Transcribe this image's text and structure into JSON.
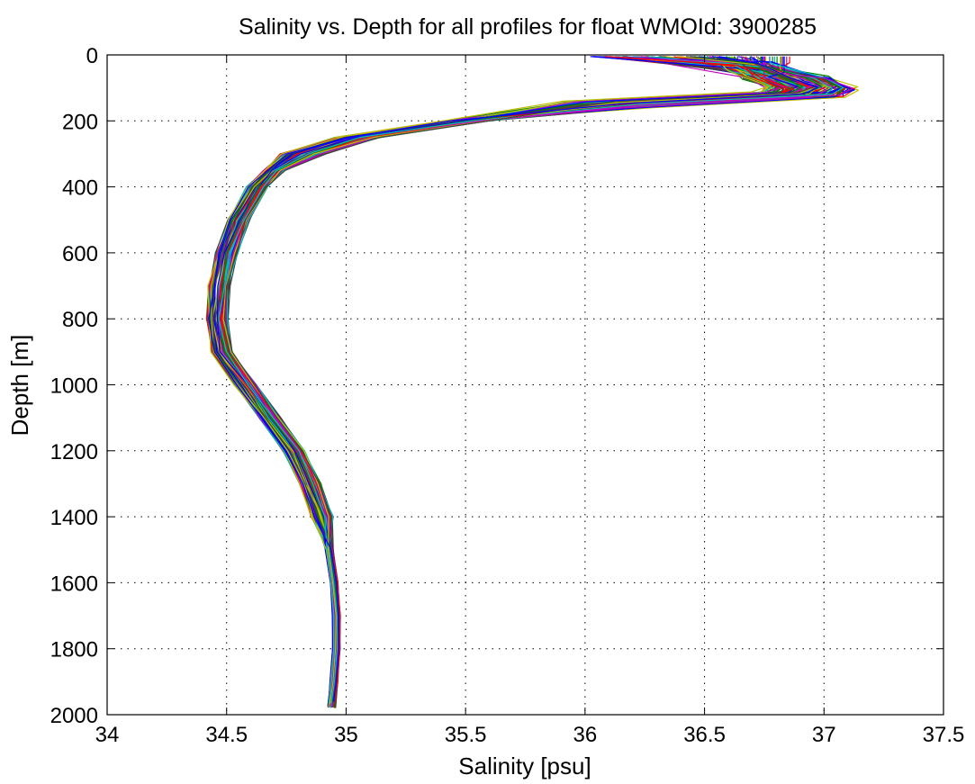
{
  "chart_data": {
    "type": "line",
    "title": "Salinity vs. Depth for all profiles for float WMOId: 3900285",
    "xlabel": "Salinity [psu]",
    "ylabel": "Depth [m]",
    "xlim": [
      34,
      37.5
    ],
    "ylim": [
      0,
      2000
    ],
    "y_reversed": true,
    "grid": true,
    "legend": "none",
    "x_ticks": [
      "34",
      "34.5",
      "35",
      "35.5",
      "36",
      "36.5",
      "37",
      "37.5"
    ],
    "y_ticks": [
      "0",
      "200",
      "400",
      "600",
      "800",
      "1000",
      "1200",
      "1400",
      "1600",
      "1800",
      "2000"
    ],
    "line_colors": [
      "#0000ff",
      "#008000",
      "#ff0000",
      "#00bfbf",
      "#bf00bf",
      "#bfbf00",
      "#404040"
    ],
    "base_profile": {
      "depth": [
        5,
        40,
        70,
        100,
        120,
        150,
        200,
        250,
        300,
        350,
        400,
        500,
        600,
        700,
        800,
        900,
        1000,
        1100,
        1200,
        1300,
        1400,
        1500,
        1600,
        1700,
        1800,
        1900,
        1975
      ],
      "salinity": [
        36.5,
        36.7,
        36.85,
        36.95,
        36.9,
        36.1,
        35.5,
        35.05,
        34.82,
        34.7,
        34.63,
        34.55,
        34.5,
        34.47,
        34.46,
        34.48,
        34.58,
        34.68,
        34.78,
        34.85,
        34.9,
        34.93,
        34.95,
        34.96,
        34.96,
        34.95,
        34.94
      ]
    },
    "profile_count": 120
  }
}
